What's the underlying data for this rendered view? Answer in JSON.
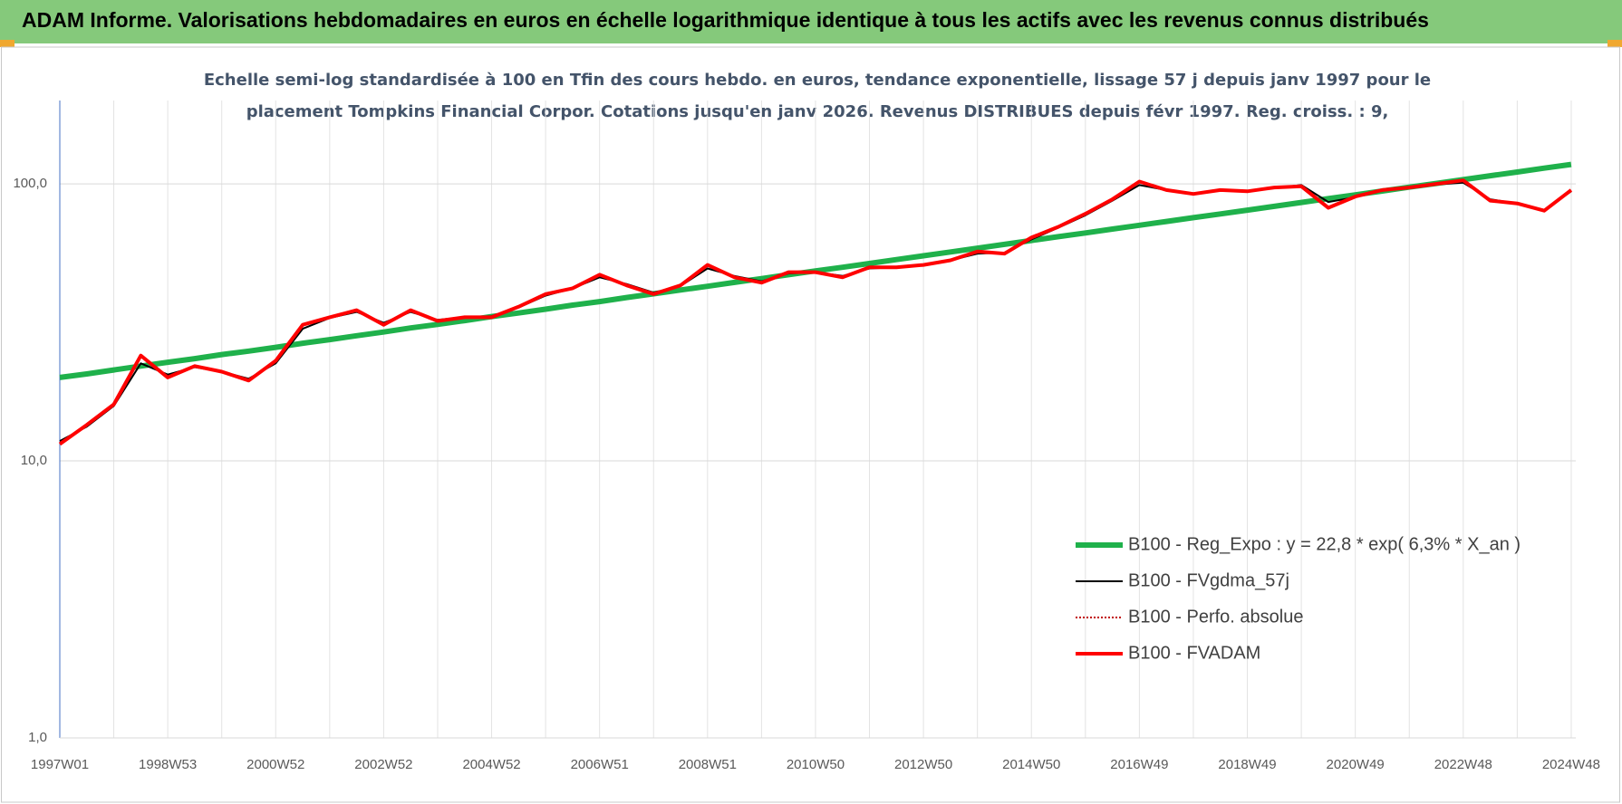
{
  "header": {
    "title": "ADAM Informe. Valorisations hebdomadaires en euros en échelle logarithmique identique à tous les actifs avec les revenus connus distribués"
  },
  "chart_data": {
    "type": "line",
    "subtitle": [
      "Echelle semi-log standardisée à 100 en Tfin des cours hebdo. en euros, tendance exponentielle, lissage 57 j depuis janv 1997 pour le",
      "placement Tompkins Financial Corpor. Cotations jusqu'en janv 2026.  Revenus DISTRIBUES depuis févr 1997.  Reg. croiss. : 9,"
    ],
    "categories": [
      "1997W01",
      null,
      null,
      null,
      "1998W53",
      null,
      null,
      null,
      "2000W52",
      null,
      null,
      null,
      "2002W52",
      null,
      null,
      null,
      "2004W52",
      null,
      null,
      null,
      "2006W51",
      null,
      null,
      null,
      "2008W51",
      null,
      null,
      null,
      "2010W50",
      null,
      null,
      null,
      "2012W50",
      null,
      null,
      null,
      "2014W50",
      null,
      null,
      null,
      "2016W49",
      null,
      null,
      null,
      "2018W49",
      null,
      null,
      null,
      "2020W49",
      null,
      null,
      null,
      "2022W48",
      null,
      null,
      null,
      "2024W48"
    ],
    "series": [
      {
        "name": "B100 - Reg_Expo : y = 22,8 * exp( 6,3% *  X_an )",
        "color": "#1fb14b",
        "values": [
          20.0,
          20.6,
          21.3,
          22.0,
          22.7,
          23.4,
          24.2,
          24.9,
          25.7,
          26.6,
          27.4,
          28.3,
          29.2,
          30.2,
          31.1,
          32.1,
          33.2,
          34.2,
          35.3,
          36.5,
          37.6,
          38.9,
          40.1,
          41.4,
          42.7,
          44.1,
          45.5,
          47.0,
          48.5,
          50.0,
          51.6,
          53.3,
          55.0,
          56.8,
          58.6,
          60.5,
          62.5,
          64.5,
          66.5,
          68.7,
          70.9,
          73.2,
          75.5,
          77.9,
          80.4,
          83.0,
          85.7,
          88.5,
          91.3,
          94.2,
          97.3,
          100.4,
          103.6,
          107.0,
          110.4,
          114.0,
          117.6
        ]
      },
      {
        "name": "B100 - FVgdma_57j",
        "color": "#000000",
        "values": [
          11.8,
          13.3,
          15.8,
          22.5,
          20.5,
          21.8,
          21.0,
          19.8,
          22.5,
          30.0,
          32.8,
          34.5,
          31.5,
          34.5,
          32.3,
          33.0,
          33.3,
          35.8,
          39.5,
          42.0,
          46.0,
          43.5,
          40.5,
          42.8,
          49.5,
          46.5,
          44.5,
          47.5,
          48.0,
          46.5,
          49.5,
          50.0,
          51.0,
          53.0,
          56.0,
          56.5,
          63.0,
          69.5,
          77.0,
          87.0,
          99.0,
          95.0,
          92.5,
          94.5,
          94.5,
          96.5,
          99.0,
          86.0,
          89.5,
          94.5,
          97.0,
          99.5,
          101.0,
          88.0,
          85.0,
          80.5,
          94.0
        ]
      },
      {
        "name": "B100 - Perfo. absolue",
        "color": "#c00000",
        "values": [
          11.5,
          13.5,
          16,
          24,
          20,
          22,
          21,
          19.5,
          23,
          31,
          33,
          35,
          31,
          35,
          32,
          33,
          33,
          36,
          40,
          42,
          47,
          43,
          40,
          43,
          51,
          46,
          44,
          48,
          48,
          46,
          50,
          50,
          51,
          53,
          57,
          56,
          64,
          70,
          78,
          88,
          102,
          95,
          92,
          95,
          94,
          97,
          98,
          82,
          90,
          95,
          97,
          100,
          103,
          87,
          85,
          80,
          95
        ]
      },
      {
        "name": "B100 - FVADAM",
        "color": "#ff0000",
        "values": [
          11.5,
          13.5,
          16,
          24,
          20,
          22,
          21,
          19.5,
          23,
          31,
          33,
          35,
          31,
          35,
          32,
          33,
          33,
          36,
          40,
          42,
          47,
          43,
          40,
          43,
          51,
          46,
          44,
          48,
          48,
          46,
          50,
          50,
          51,
          53,
          57,
          56,
          64,
          70,
          78,
          88,
          102,
          95,
          92,
          95,
          94,
          97,
          98,
          82,
          90,
          95,
          97,
          100,
          103,
          87,
          85,
          80,
          95
        ]
      }
    ],
    "ylog": true,
    "ylim": [
      1,
      200
    ],
    "yticks": [
      {
        "value": 1,
        "label": "1,0"
      },
      {
        "value": 10,
        "label": "10,0"
      },
      {
        "value": 100,
        "label": "100,0"
      }
    ],
    "grid": true,
    "legend": "lower-right"
  }
}
